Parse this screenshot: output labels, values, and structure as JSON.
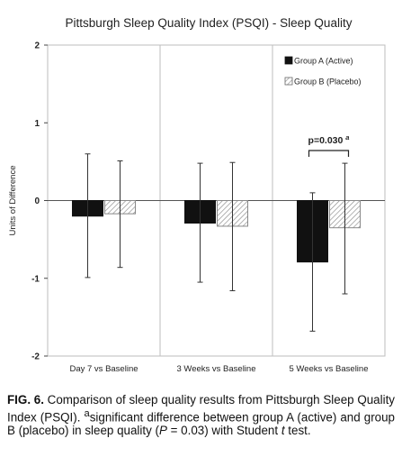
{
  "chart_data": {
    "type": "bar",
    "title": "Pittsburgh Sleep Quality Index (PSQI) - Sleep Quality",
    "ylabel": "Units of Difference",
    "xlabel": "",
    "ylim": [
      -2,
      2
    ],
    "yticks": [
      2,
      1,
      0,
      -1,
      -2
    ],
    "categories": [
      "Day 7 vs Baseline",
      "3 Weeks vs Baseline",
      "5 Weeks vs Baseline"
    ],
    "series": [
      {
        "name": "Group A (Active)",
        "values": [
          -0.2,
          -0.29,
          -0.79
        ],
        "err_low": [
          -0.99,
          -1.05,
          -1.68
        ],
        "err_high": [
          0.6,
          0.48,
          0.1
        ],
        "color": "#111111",
        "pattern": "solid"
      },
      {
        "name": "Group B (Placebo)",
        "values": [
          -0.17,
          -0.33,
          -0.35
        ],
        "err_low": [
          -0.86,
          -1.16,
          -1.2
        ],
        "err_high": [
          0.51,
          0.49,
          0.48
        ],
        "color": "#ffffff",
        "pattern": "hatched"
      }
    ],
    "grid": false,
    "legend_position": "top-right",
    "annotation": {
      "text": "p=0.030",
      "superscript": "a",
      "category_index": 2
    }
  },
  "caption": {
    "label": "FIG. 6.",
    "text_1": " Comparison of sleep quality results from Pittsburgh Sleep Quality Index (PSQI). ",
    "superscript_a": "a",
    "text_2": "significant difference between group A (active) and group B (placebo) in sleep quality (",
    "p_symbol": "P",
    "text_3": " = 0.03) with Student ",
    "t_symbol": "t",
    "text_4": " test."
  }
}
